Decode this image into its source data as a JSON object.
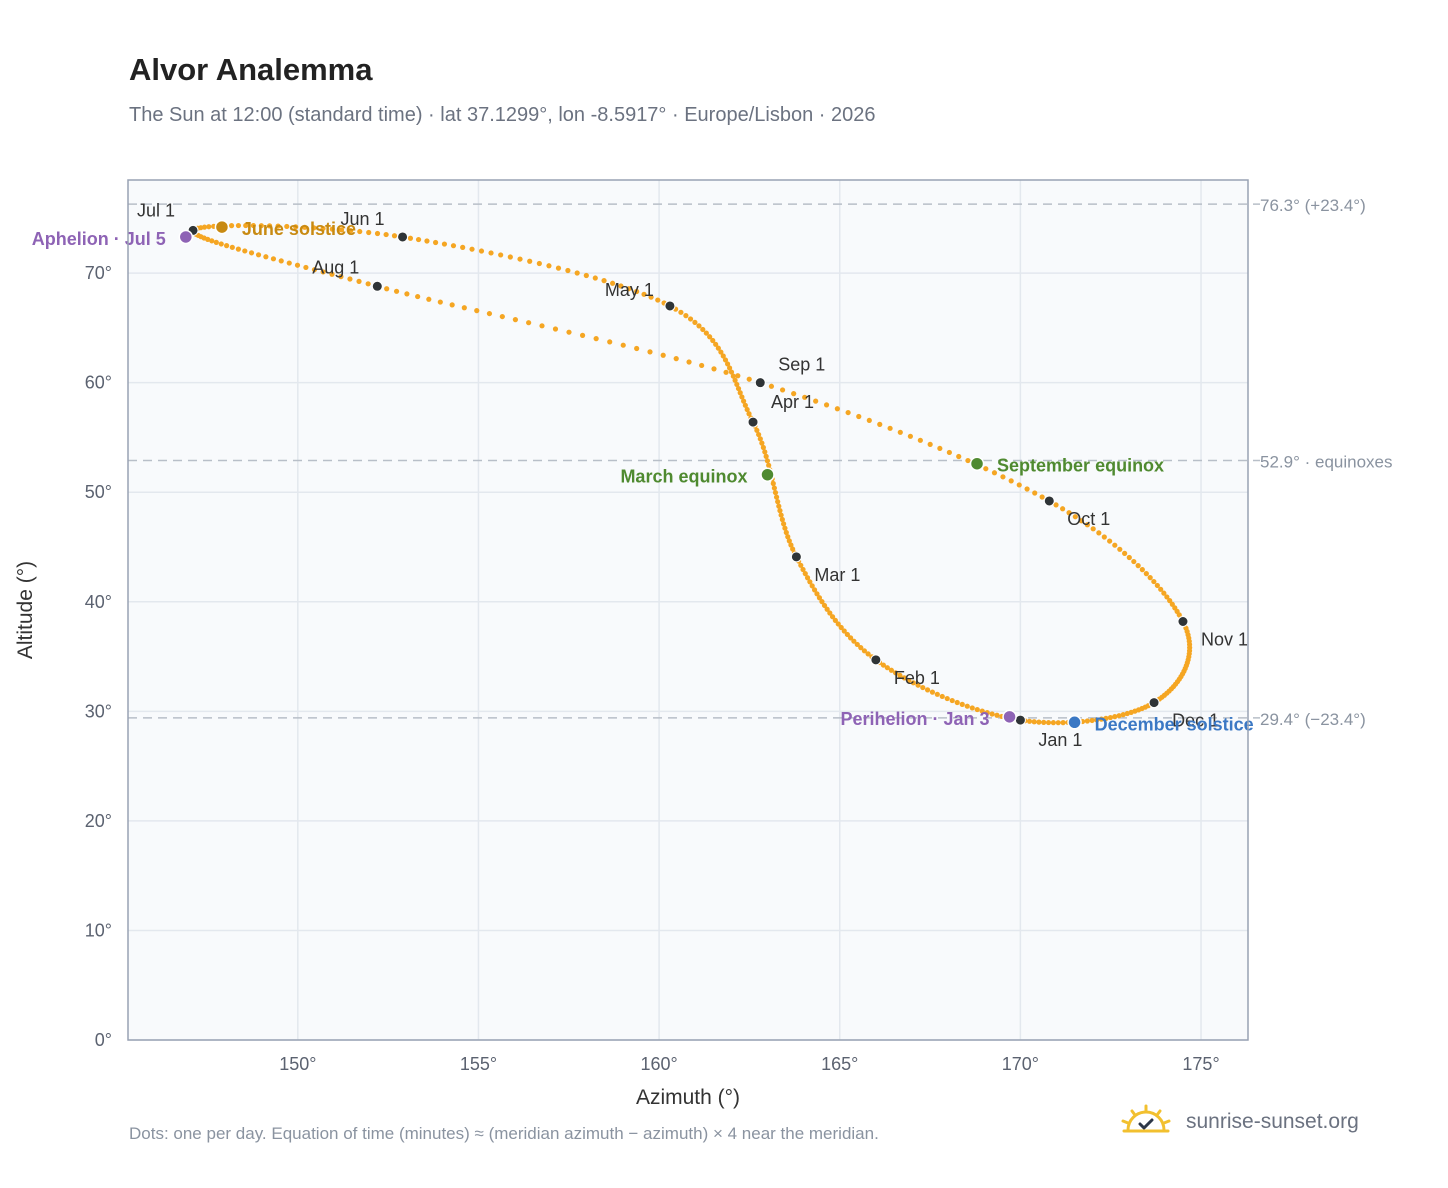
{
  "title": "Alvor Analemma",
  "subtitle": "The Sun at 12:00 (standard time) · lat 37.1299°, lon -8.5917° · Europe/Lisbon · 2026",
  "footnote": "Dots: one per day. Equation of time (minutes) ≈ (meridian azimuth − azimuth) × 4 near the meridian.",
  "brand": "sunrise-sunset.org",
  "colors": {
    "curve": "#f5a623",
    "month_marker": "#2f3437",
    "solstice_june": "#c88a12",
    "solstice_december": "#3b78c4",
    "equinox": "#4f8a30",
    "apsis": "#8e63b5",
    "reference_line": "#b8bfc8",
    "grid": "#e3e8ee",
    "plot_bg": "#f8fafc",
    "frame": "#98a2b3"
  },
  "chart_data": {
    "type": "scatter",
    "title": "Alvor Analemma",
    "xlabel": "Azimuth (°)",
    "ylabel": "Altitude (°)",
    "xlim": [
      145.3,
      176.3
    ],
    "ylim": [
      0,
      78.5
    ],
    "x_ticks": [
      150,
      155,
      160,
      165,
      170,
      175
    ],
    "y_ticks": [
      0,
      10,
      20,
      30,
      40,
      50,
      60,
      70
    ],
    "x_tick_labels": [
      "150°",
      "155°",
      "160°",
      "165°",
      "170°",
      "175°"
    ],
    "y_tick_labels": [
      "0°",
      "10°",
      "20°",
      "30°",
      "40°",
      "50°",
      "60°",
      "70°"
    ],
    "grid": true,
    "series_description": "Dots: one per day",
    "month_points": [
      {
        "label": "Jan 1",
        "azimuth": 170.0,
        "altitude": 29.2
      },
      {
        "label": "Feb 1",
        "azimuth": 166.0,
        "altitude": 34.7
      },
      {
        "label": "Mar 1",
        "azimuth": 163.8,
        "altitude": 44.1
      },
      {
        "label": "Apr 1",
        "azimuth": 162.6,
        "altitude": 56.4
      },
      {
        "label": "May 1",
        "azimuth": 160.3,
        "altitude": 67.0
      },
      {
        "label": "Jun 1",
        "azimuth": 152.9,
        "altitude": 73.3
      },
      {
        "label": "Jul 1",
        "azimuth": 147.1,
        "altitude": 73.9
      },
      {
        "label": "Aug 1",
        "azimuth": 152.2,
        "altitude": 68.8
      },
      {
        "label": "Sep 1",
        "azimuth": 162.8,
        "altitude": 60.0
      },
      {
        "label": "Oct 1",
        "azimuth": 170.8,
        "altitude": 49.2
      },
      {
        "label": "Nov 1",
        "azimuth": 174.5,
        "altitude": 38.2
      },
      {
        "label": "Dec 1",
        "azimuth": 173.7,
        "altitude": 30.8
      }
    ],
    "events": [
      {
        "label": "June solstice",
        "azimuth": 147.9,
        "altitude": 74.2,
        "kind": "solstice_june"
      },
      {
        "label": "December solstice",
        "azimuth": 171.5,
        "altitude": 29.0,
        "kind": "solstice_december"
      },
      {
        "label": "March equinox",
        "azimuth": 163.0,
        "altitude": 51.6,
        "kind": "equinox"
      },
      {
        "label": "September equinox",
        "azimuth": 168.8,
        "altitude": 52.6,
        "kind": "equinox"
      },
      {
        "label": "Aphelion · Jul 5",
        "azimuth": 146.9,
        "altitude": 73.3,
        "kind": "apsis"
      },
      {
        "label": "Perihelion · Jan 3",
        "azimuth": 169.7,
        "altitude": 29.5,
        "kind": "apsis"
      }
    ],
    "reference_lines": [
      {
        "altitude": 76.3,
        "label": "76.3° (+23.4°)"
      },
      {
        "altitude": 52.9,
        "label": "52.9° · equinoxes"
      },
      {
        "altitude": 29.4,
        "label": "29.4° (−23.4°)"
      }
    ]
  }
}
